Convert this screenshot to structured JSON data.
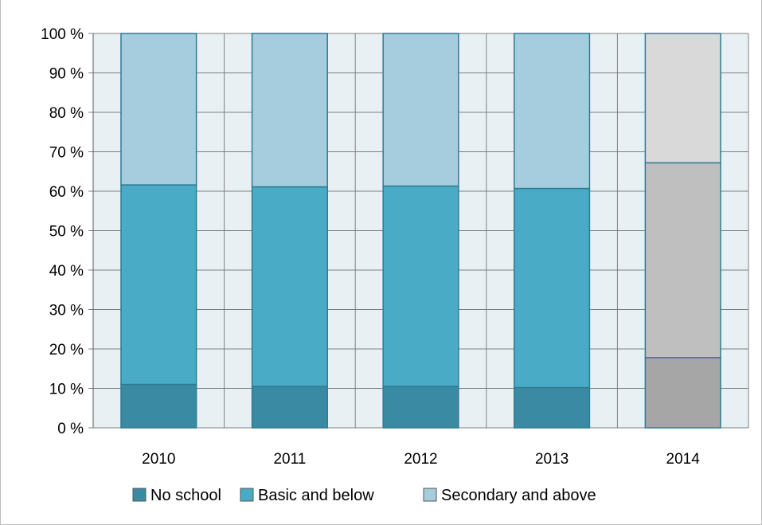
{
  "chart_data": {
    "type": "bar",
    "stacked": true,
    "percent": true,
    "title": "",
    "xlabel": "",
    "ylabel": "",
    "categories": [
      "2010",
      "2011",
      "2012",
      "2013",
      "2014"
    ],
    "series": [
      {
        "name": "No school",
        "values": [
          11,
          10.5,
          10.5,
          10.2,
          17.8
        ],
        "color": "#3a8aa3"
      },
      {
        "name": "Basic and below",
        "values": [
          50.6,
          50.6,
          50.8,
          50.5,
          49.4
        ],
        "color": "#49abc6"
      },
      {
        "name": "Secondary and above",
        "values": [
          38.4,
          38.9,
          38.7,
          39.3,
          32.8
        ],
        "color": "#a6cddd"
      }
    ],
    "highlighted_category": {
      "category": "2014",
      "colors": [
        "#a6a6a6",
        "#bfbfbf",
        "#d9d9d9"
      ]
    },
    "ylim": [
      0,
      100
    ],
    "yticks": [
      "0 %",
      "10 %",
      "20 %",
      "30 %",
      "40 %",
      "50 %",
      "60 %",
      "70 %",
      "80 %",
      "90 %",
      "100 %"
    ],
    "grid": true,
    "legend_position": "bottom",
    "plot_background": "#e9f0f4",
    "bar_outline": "#2e7b92"
  }
}
